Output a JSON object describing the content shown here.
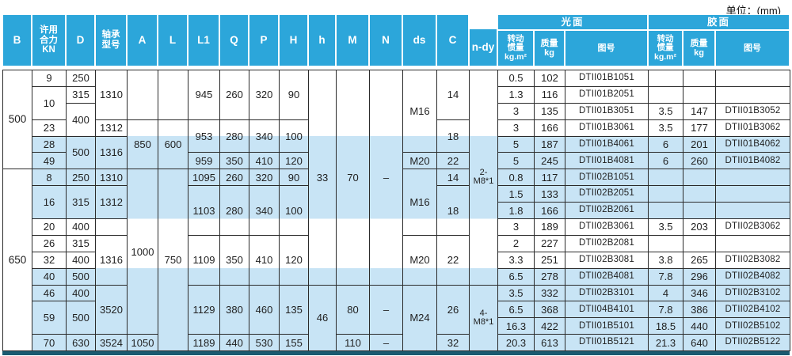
{
  "unit_label": "单位：(mm)",
  "colors": {
    "header_blue": "#2ca6da",
    "band_blue": "#c8e4f5",
    "bottom_bar": "#1a5a70",
    "border": "#2b2b2b"
  },
  "header": {
    "columns": [
      "B",
      "许用\n合力\nKN",
      "D",
      "轴承\n型号",
      "A",
      "L",
      "L1",
      "Q",
      "P",
      "H",
      "h",
      "M",
      "N",
      "ds",
      "C",
      "n-dy"
    ],
    "groups": [
      {
        "label": "光面",
        "sub": [
          "转动\n惯量\nkg.m²",
          "质量\nkg",
          "图号"
        ]
      },
      {
        "label": "胶面",
        "sub": [
          "转动\n惯量\nkg.m²",
          "质量\nkg",
          "图号"
        ]
      }
    ]
  },
  "body": {
    "rows": [
      [
        {
          "v": "500",
          "rs": 6,
          "cls": "bcol",
          "n": "cell-b-500"
        },
        {
          "v": "9"
        },
        {
          "v": "250"
        },
        {
          "v": "1310",
          "rs": 3
        },
        {
          "v": "",
          "rs": 3
        },
        {
          "v": "",
          "rs": 3
        },
        {
          "v": "945",
          "rs": 3
        },
        {
          "v": "260",
          "rs": 3
        },
        {
          "v": "320",
          "rs": 3
        },
        {
          "v": "90",
          "rs": 3
        },
        {
          "v": "33",
          "rs": 13
        },
        {
          "v": "70",
          "rs": 13
        },
        {
          "v": "–",
          "rs": 13
        },
        {
          "v": "M16",
          "rs": 5
        },
        {
          "v": "14",
          "rs": 3
        },
        {
          "v": "2-M8*1",
          "rs": 13,
          "cls": "small"
        },
        {
          "v": "0.5"
        },
        {
          "v": "102"
        },
        {
          "v": "DTII01B1051",
          "cls": "dwg"
        },
        {
          "v": ""
        },
        {
          "v": ""
        },
        {
          "v": "",
          "cls": "dwg"
        }
      ],
      [
        {
          "v": "10",
          "rs": 2
        },
        {
          "v": "315"
        },
        {
          "v": "1.3"
        },
        {
          "v": "116"
        },
        {
          "v": "DTII01B2051",
          "cls": "dwg"
        },
        {
          "v": ""
        },
        {
          "v": ""
        },
        {
          "v": "",
          "cls": "dwg"
        }
      ],
      [
        {
          "v": "400",
          "rs": 2
        },
        {
          "v": "3"
        },
        {
          "v": "135"
        },
        {
          "v": "DTII01B3051",
          "cls": "dwg"
        },
        {
          "v": "3.5"
        },
        {
          "v": "147"
        },
        {
          "v": "DTII01B3052",
          "cls": "dwg"
        }
      ],
      [
        {
          "v": "23"
        },
        {
          "v": "1312"
        },
        {
          "v": "850",
          "rs": 3
        },
        {
          "v": "600",
          "rs": 3
        },
        {
          "v": "953",
          "rs": 2
        },
        {
          "v": "280",
          "rs": 2
        },
        {
          "v": "340",
          "rs": 2
        },
        {
          "v": "100",
          "rs": 2
        },
        {
          "v": "18",
          "rs": 2
        },
        {
          "v": "3"
        },
        {
          "v": "166"
        },
        {
          "v": "DTII01B3061",
          "cls": "dwg"
        },
        {
          "v": "3.5"
        },
        {
          "v": "177"
        },
        {
          "v": "DTII01B3062",
          "cls": "dwg"
        }
      ],
      [
        {
          "v": "28"
        },
        {
          "v": "500",
          "rs": 2
        },
        {
          "v": "1316",
          "rs": 2
        },
        {
          "v": "5"
        },
        {
          "v": "187"
        },
        {
          "v": "DTII01B4061",
          "cls": "dwg"
        },
        {
          "v": "6"
        },
        {
          "v": "201"
        },
        {
          "v": "DTII01B4062",
          "cls": "dwg"
        }
      ],
      [
        {
          "v": "49"
        },
        {
          "v": "959"
        },
        {
          "v": "350"
        },
        {
          "v": "410"
        },
        {
          "v": "120"
        },
        {
          "v": "M20"
        },
        {
          "v": "22"
        },
        {
          "v": "5"
        },
        {
          "v": "245"
        },
        {
          "v": "DTII01B4081",
          "cls": "dwg"
        },
        {
          "v": "6"
        },
        {
          "v": "260"
        },
        {
          "v": "DTII01B4082",
          "cls": "dwg"
        }
      ],
      [
        {
          "v": "650",
          "rs": 11,
          "cls": "bcol",
          "n": "cell-b-650"
        },
        {
          "v": "8"
        },
        {
          "v": "250"
        },
        {
          "v": "1310"
        },
        {
          "v": "1000",
          "rs": 10
        },
        {
          "v": "750",
          "rs": 11
        },
        {
          "v": "1095"
        },
        {
          "v": "260"
        },
        {
          "v": "320"
        },
        {
          "v": "90"
        },
        {
          "v": "M16",
          "rs": 4
        },
        {
          "v": "14"
        },
        {
          "v": "0.8"
        },
        {
          "v": "117"
        },
        {
          "v": "DTII02B1051",
          "cls": "dwg"
        },
        {
          "v": ""
        },
        {
          "v": ""
        },
        {
          "v": "",
          "cls": "dwg"
        }
      ],
      [
        {
          "v": "16",
          "rs": 2
        },
        {
          "v": "315",
          "rs": 2
        },
        {
          "v": "1312",
          "rs": 2
        },
        {
          "v": "1103",
          "rs": 3
        },
        {
          "v": "280",
          "rs": 3
        },
        {
          "v": "340",
          "rs": 3
        },
        {
          "v": "100",
          "rs": 3
        },
        {
          "v": "18",
          "rs": 3
        },
        {
          "v": "1.5"
        },
        {
          "v": "133"
        },
        {
          "v": "DTII02B2051",
          "cls": "dwg"
        },
        {
          "v": ""
        },
        {
          "v": ""
        },
        {
          "v": "",
          "cls": "dwg"
        }
      ],
      [
        {
          "v": "1.8"
        },
        {
          "v": "166"
        },
        {
          "v": "DTII02B2061",
          "cls": "dwg"
        },
        {
          "v": ""
        },
        {
          "v": ""
        },
        {
          "v": "",
          "cls": "dwg"
        }
      ],
      [
        {
          "v": "20"
        },
        {
          "v": "400"
        },
        {
          "v": ""
        },
        {
          "v": "3"
        },
        {
          "v": "189"
        },
        {
          "v": "DTII02B3061",
          "cls": "dwg"
        },
        {
          "v": "3.5"
        },
        {
          "v": "203"
        },
        {
          "v": "DTII02B3062",
          "cls": "dwg"
        }
      ],
      [
        {
          "v": "26"
        },
        {
          "v": "315"
        },
        {
          "v": "1316",
          "rs": 3
        },
        {
          "v": "1109",
          "rs": 3
        },
        {
          "v": "350",
          "rs": 3
        },
        {
          "v": "410",
          "rs": 3
        },
        {
          "v": "120",
          "rs": 3
        },
        {
          "v": "M20",
          "rs": 3
        },
        {
          "v": "22",
          "rs": 3
        },
        {
          "v": "2"
        },
        {
          "v": "227"
        },
        {
          "v": "DTII02B2081",
          "cls": "dwg"
        },
        {
          "v": ""
        },
        {
          "v": ""
        },
        {
          "v": "",
          "cls": "dwg"
        }
      ],
      [
        {
          "v": "32"
        },
        {
          "v": "400"
        },
        {
          "v": "3.3"
        },
        {
          "v": "251"
        },
        {
          "v": "DTII02B3081",
          "cls": "dwg"
        },
        {
          "v": "3.8"
        },
        {
          "v": "265"
        },
        {
          "v": "DTII02B3082",
          "cls": "dwg"
        }
      ],
      [
        {
          "v": "40"
        },
        {
          "v": "500"
        },
        {
          "v": "6.5"
        },
        {
          "v": "278"
        },
        {
          "v": "DTII02B4081",
          "cls": "dwg"
        },
        {
          "v": "7.8"
        },
        {
          "v": "296"
        },
        {
          "v": "DTII02B4082",
          "cls": "dwg"
        }
      ],
      [
        {
          "v": "46"
        },
        {
          "v": "400"
        },
        {
          "v": "3520",
          "rs": 3
        },
        {
          "v": "1129",
          "rs": 3
        },
        {
          "v": "380",
          "rs": 3
        },
        {
          "v": "460",
          "rs": 3
        },
        {
          "v": "135",
          "rs": 3
        },
        {
          "v": "46",
          "rs": 4
        },
        {
          "v": "80",
          "rs": 3
        },
        {
          "v": "–",
          "rs": 3
        },
        {
          "v": "M24",
          "rs": 4
        },
        {
          "v": "26",
          "rs": 3
        },
        {
          "v": "4-M8*1",
          "rs": 4,
          "cls": "small"
        },
        {
          "v": "3.5"
        },
        {
          "v": "332"
        },
        {
          "v": "DTII02B3101",
          "cls": "dwg"
        },
        {
          "v": "4"
        },
        {
          "v": "346"
        },
        {
          "v": "DTII02B3102",
          "cls": "dwg"
        }
      ],
      [
        {
          "v": "59",
          "rs": 2
        },
        {
          "v": "500",
          "rs": 2
        },
        {
          "v": "6.5"
        },
        {
          "v": "368"
        },
        {
          "v": "DTII04B4101",
          "cls": "dwg"
        },
        {
          "v": "7.8"
        },
        {
          "v": "386"
        },
        {
          "v": "DTII02B4102",
          "cls": "dwg"
        }
      ],
      [
        {
          "v": "16.3"
        },
        {
          "v": "422"
        },
        {
          "v": "DTII01B5101",
          "cls": "dwg"
        },
        {
          "v": "18.5"
        },
        {
          "v": "440"
        },
        {
          "v": "DTII02B5102",
          "cls": "dwg"
        }
      ],
      [
        {
          "v": "70"
        },
        {
          "v": "630"
        },
        {
          "v": "3524"
        },
        {
          "v": "1050"
        },
        {
          "v": "1189"
        },
        {
          "v": "440"
        },
        {
          "v": "530"
        },
        {
          "v": "155"
        },
        {
          "v": "110"
        },
        {
          "v": "–"
        },
        {
          "v": "32"
        },
        {
          "v": "20.3"
        },
        {
          "v": "613"
        },
        {
          "v": "DTII01B5121",
          "cls": "dwg"
        },
        {
          "v": "21.3"
        },
        {
          "v": "640"
        },
        {
          "v": "DTII02B5122",
          "cls": "dwg"
        }
      ]
    ]
  }
}
